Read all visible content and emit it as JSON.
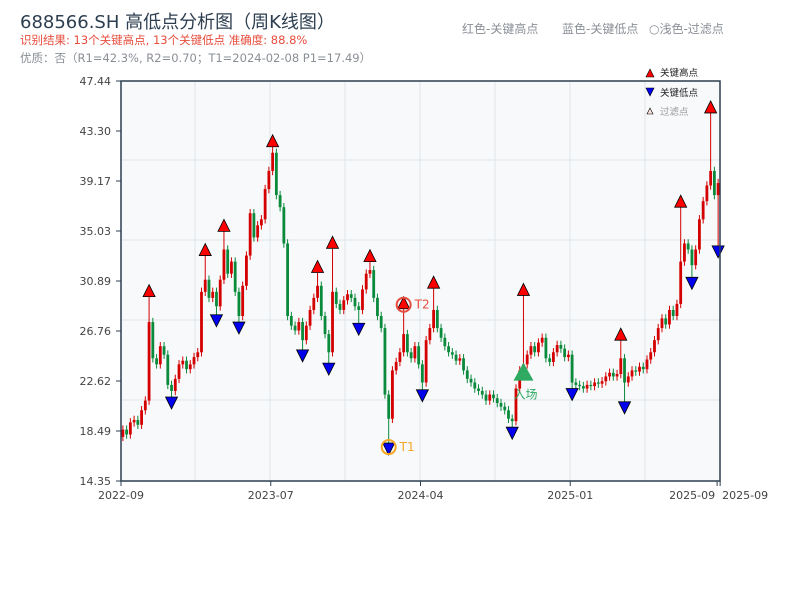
{
  "header": {
    "title": "688566.SH 高低点分析图（周K线图）",
    "result_line": "识别结果: 13个关键高点, 13个关键低点  准确度: 88.8%",
    "quality_line": "优质：否（R1=42.3%, R2=0.70；T1=2024-02-08 P1=17.49）",
    "legend_red": "红色-关键高点",
    "legend_blue": "蓝色-关键低点",
    "legend_light": "○浅色-过滤点"
  },
  "chart_data": {
    "type": "candlestick",
    "y_ticks": [
      "47.44",
      "43.30",
      "39.17",
      "35.03",
      "30.89",
      "26.76",
      "22.62",
      "18.49",
      "14.35"
    ],
    "ylim": [
      14.35,
      47.44
    ],
    "x_ticks": [
      {
        "index": 0,
        "label": "2022-09"
      },
      {
        "index": 40,
        "label": "2023-07"
      },
      {
        "index": 80,
        "label": "2024-04"
      },
      {
        "index": 120,
        "label": "2025-01"
      },
      {
        "index": 159,
        "label": "2025-09"
      },
      {
        "index": 159,
        "label": "2025-09"
      }
    ],
    "first_open": 18.0,
    "closes": [
      18.6,
      18.2,
      19.2,
      19.4,
      19.0,
      20.2,
      21.0,
      27.5,
      24.5,
      24.0,
      25.5,
      24.8,
      22.3,
      21.8,
      22.8,
      24.0,
      24.3,
      23.6,
      24.0,
      24.6,
      25.0,
      30.0,
      31.0,
      29.5,
      30.0,
      28.8,
      31.0,
      33.5,
      31.5,
      32.5,
      30.0,
      28.0,
      30.5,
      33.0,
      36.5,
      34.5,
      35.5,
      36.0,
      38.5,
      40.0,
      41.5,
      38.0,
      37.0,
      34.0,
      28.0,
      27.2,
      26.8,
      27.5,
      26.0,
      27.2,
      28.5,
      29.5,
      30.5,
      28.0,
      26.5,
      25.0,
      30.0,
      29.0,
      28.5,
      29.3,
      29.8,
      29.5,
      28.8,
      28.5,
      30.2,
      31.5,
      31.8,
      29.5,
      28.0,
      27.0,
      21.5,
      19.5,
      23.5,
      24.2,
      25.0,
      26.5,
      25.0,
      24.5,
      25.5,
      24.0,
      22.5,
      26.0,
      27.0,
      28.5,
      27.0,
      26.2,
      25.5,
      25.0,
      24.8,
      24.3,
      24.5,
      23.5,
      22.8,
      22.5,
      22.0,
      21.8,
      21.5,
      21.0,
      21.5,
      21.2,
      20.8,
      20.5,
      20.2,
      19.5,
      19.3,
      22.0,
      23.5,
      24.0,
      24.8,
      25.5,
      25.0,
      25.8,
      26.2,
      24.5,
      24.2,
      25.0,
      25.6,
      25.3,
      24.6,
      24.8,
      22.5,
      22.3,
      22.2,
      22.0,
      22.3,
      22.2,
      22.5,
      22.4,
      22.6,
      23.0,
      23.3,
      23.0,
      23.2,
      24.5,
      22.5,
      23.0,
      23.5,
      23.4,
      23.8,
      23.6,
      24.4,
      25.0,
      26.0,
      27.0,
      27.8,
      27.3,
      28.5,
      28.0,
      29.0,
      32.5,
      34.0,
      33.5,
      32.2,
      33.5,
      36.0,
      37.5,
      38.8,
      40.0,
      38.0,
      39.0
    ],
    "key_highs": [
      {
        "index": 7,
        "price": 29.6
      },
      {
        "index": 22,
        "price": 33.0
      },
      {
        "index": 27,
        "price": 35.0
      },
      {
        "index": 40,
        "price": 42.0
      },
      {
        "index": 52,
        "price": 31.6
      },
      {
        "index": 56,
        "price": 33.6
      },
      {
        "index": 66,
        "price": 32.5
      },
      {
        "index": 75,
        "price": 28.6
      },
      {
        "index": 83,
        "price": 30.3
      },
      {
        "index": 107,
        "price": 29.7
      },
      {
        "index": 133,
        "price": 26.0
      },
      {
        "index": 149,
        "price": 37.0
      },
      {
        "index": 157,
        "price": 44.8
      }
    ],
    "key_lows": [
      {
        "index": 13,
        "price": 21.3
      },
      {
        "index": 25,
        "price": 28.1
      },
      {
        "index": 31,
        "price": 27.5
      },
      {
        "index": 48,
        "price": 25.2
      },
      {
        "index": 55,
        "price": 24.1
      },
      {
        "index": 63,
        "price": 27.4
      },
      {
        "index": 71,
        "price": 17.49
      },
      {
        "index": 80,
        "price": 21.9
      },
      {
        "index": 104,
        "price": 18.8
      },
      {
        "index": 120,
        "price": 22.0
      },
      {
        "index": 134,
        "price": 20.9
      },
      {
        "index": 152,
        "price": 31.2
      },
      {
        "index": 159,
        "price": 33.8
      }
    ],
    "t1": {
      "label": "T1",
      "index": 71,
      "price": 17.49,
      "date": "2024-02-08"
    },
    "t2": {
      "label": "T2",
      "index": 75,
      "price": 28.6
    },
    "entry": {
      "label": "入场",
      "index": 107,
      "price": 23.4
    },
    "legend": {
      "high": "关键高点",
      "low": "关键低点",
      "filtered": "过滤点",
      "placement": "top-right"
    },
    "colors": {
      "up": "#d40000",
      "down": "#0b8a3c",
      "high_marker": "#ff0000",
      "low_marker": "#0000ee",
      "t1": "#f5a623",
      "t2": "#e74c3c",
      "entry": "#2eaa62",
      "axis": "#2c3e50",
      "plot_bg": "#f7f9fb",
      "grid": "#e1e5ea"
    }
  }
}
